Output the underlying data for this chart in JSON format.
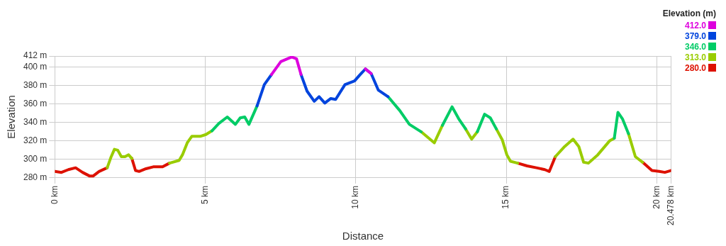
{
  "chart_data": {
    "type": "line",
    "xlabel": "Distance",
    "ylabel": "Elevation",
    "legend_title": "Elevation (m)",
    "legend": "top right",
    "x": [
      0,
      0.22,
      0.45,
      0.69,
      0.92,
      1.16,
      1.27,
      1.47,
      1.74,
      1.86,
      1.98,
      2.09,
      2.21,
      2.33,
      2.45,
      2.56,
      2.68,
      2.8,
      3.03,
      3.27,
      3.58,
      3.81,
      4.13,
      4.24,
      4.4,
      4.55,
      4.83,
      5.02,
      5.22,
      5.45,
      5.73,
      6.0,
      6.16,
      6.31,
      6.45,
      6.72,
      6.96,
      7.2,
      7.51,
      7.87,
      8.03,
      8.18,
      8.38,
      8.62,
      8.78,
      8.97,
      9.17,
      9.33,
      9.64,
      9.96,
      10.12,
      10.32,
      10.51,
      10.75,
      11.07,
      11.46,
      11.78,
      12.17,
      12.61,
      12.88,
      13.2,
      13.42,
      13.65,
      13.85,
      14.04,
      14.28,
      14.47,
      14.67,
      14.87,
      15.02,
      15.14,
      15.38,
      15.69,
      16.0,
      16.28,
      16.43,
      16.63,
      16.94,
      17.22,
      17.41,
      17.57,
      17.73,
      18.04,
      18.43,
      18.59,
      18.71,
      18.86,
      19.06,
      19.29,
      19.53,
      19.84,
      20.08,
      20.27,
      20.47
    ],
    "series": [
      {
        "name": "412.0",
        "color": "#dd00dd",
        "values": [
          null,
          null,
          null,
          null,
          null,
          null,
          null,
          null,
          null,
          null,
          null,
          null,
          null,
          null,
          null,
          null,
          null,
          null,
          null,
          null,
          null,
          null,
          null,
          null,
          null,
          null,
          null,
          null,
          null,
          null,
          null,
          null,
          null,
          null,
          null,
          null,
          null,
          392,
          406,
          411,
          409,
          392,
          null,
          null,
          null,
          null,
          null,
          null,
          null,
          null,
          null,
          398,
          393,
          null,
          null,
          null,
          null,
          null,
          null,
          null,
          null,
          null,
          null,
          null,
          null,
          null,
          null,
          null,
          null,
          null,
          null,
          null,
          null,
          null,
          null,
          null,
          null,
          null,
          null,
          null,
          null,
          null,
          null,
          null,
          null,
          null,
          null,
          null,
          null,
          null,
          null,
          null,
          null,
          null
        ]
      },
      {
        "name": "379.0",
        "color": "#0044dd",
        "values": [
          null,
          null,
          null,
          null,
          null,
          null,
          null,
          null,
          null,
          null,
          null,
          null,
          null,
          null,
          null,
          null,
          null,
          null,
          null,
          null,
          null,
          null,
          null,
          null,
          null,
          null,
          null,
          null,
          null,
          null,
          null,
          null,
          null,
          null,
          null,
          358,
          381,
          392,
          null,
          null,
          null,
          392,
          374,
          363,
          368,
          361,
          366,
          365,
          381,
          385,
          391,
          398,
          393,
          375,
          368,
          null,
          null,
          null,
          null,
          null,
          null,
          null,
          null,
          null,
          null,
          null,
          null,
          null,
          null,
          null,
          null,
          null,
          null,
          null,
          null,
          null,
          null,
          null,
          null,
          null,
          null,
          null,
          null,
          null,
          null,
          null,
          null,
          null,
          null,
          null,
          null,
          null,
          null,
          null
        ]
      },
      {
        "name": "346.0",
        "color": "#00cc66",
        "values": [
          null,
          null,
          null,
          null,
          null,
          null,
          null,
          null,
          null,
          null,
          null,
          null,
          null,
          null,
          null,
          null,
          null,
          null,
          null,
          null,
          null,
          null,
          null,
          null,
          null,
          null,
          null,
          null,
          331,
          339,
          346,
          338,
          345,
          346,
          338,
          358,
          null,
          null,
          null,
          null,
          null,
          null,
          null,
          null,
          null,
          null,
          null,
          null,
          null,
          null,
          null,
          null,
          null,
          null,
          368,
          353,
          338,
          330,
          null,
          337,
          357,
          344,
          333,
          null,
          330,
          349,
          345,
          333,
          null,
          null,
          null,
          null,
          null,
          null,
          null,
          null,
          null,
          null,
          null,
          null,
          null,
          null,
          null,
          null,
          323,
          351,
          344,
          328,
          null,
          null,
          null,
          null,
          null,
          null
        ]
      },
      {
        "name": "313.0",
        "color": "#99cc00",
        "values": [
          null,
          null,
          null,
          null,
          null,
          null,
          null,
          null,
          291,
          302,
          311,
          310,
          303,
          303,
          305,
          301,
          null,
          null,
          null,
          null,
          null,
          296,
          299,
          305,
          318,
          325,
          325,
          327,
          331,
          null,
          null,
          null,
          null,
          null,
          null,
          null,
          null,
          null,
          null,
          null,
          null,
          null,
          null,
          null,
          null,
          null,
          null,
          null,
          null,
          null,
          null,
          null,
          null,
          null,
          null,
          null,
          null,
          330,
          318,
          337,
          null,
          null,
          333,
          322,
          330,
          null,
          null,
          333,
          321,
          305,
          298,
          296,
          null,
          null,
          null,
          null,
          303,
          314,
          322,
          314,
          297,
          296,
          305,
          320,
          323,
          null,
          null,
          328,
          303,
          297,
          null,
          null,
          null,
          null
        ]
      },
      {
        "name": "280.0",
        "color": "#dd1100",
        "values": [
          287,
          286,
          289,
          291,
          286,
          282,
          282,
          287,
          291,
          null,
          null,
          null,
          null,
          null,
          null,
          301,
          288,
          287,
          290,
          292,
          292,
          296,
          null,
          null,
          null,
          null,
          null,
          null,
          null,
          null,
          null,
          null,
          null,
          null,
          null,
          null,
          null,
          null,
          null,
          null,
          null,
          null,
          null,
          null,
          null,
          null,
          null,
          null,
          null,
          null,
          null,
          null,
          null,
          null,
          null,
          null,
          null,
          null,
          null,
          null,
          null,
          null,
          null,
          null,
          null,
          null,
          null,
          null,
          null,
          null,
          null,
          296,
          293,
          291,
          289,
          287,
          303,
          null,
          null,
          null,
          null,
          null,
          null,
          null,
          null,
          null,
          null,
          null,
          null,
          297,
          288,
          287,
          286,
          288
        ]
      }
    ],
    "xlim": [
      0,
      20.478
    ],
    "ylim": [
      280,
      412
    ],
    "xticks": [
      {
        "value": 0,
        "label": "0 km"
      },
      {
        "value": 5,
        "label": "5 km"
      },
      {
        "value": 10,
        "label": "10 km"
      },
      {
        "value": 15,
        "label": "15 km"
      },
      {
        "value": 20,
        "label": "20 km"
      },
      {
        "value": 20.478,
        "label": "20.478 km"
      }
    ],
    "yticks": [
      {
        "value": 280,
        "label": "280 m"
      },
      {
        "value": 300,
        "label": "300 m"
      },
      {
        "value": 320,
        "label": "320 m"
      },
      {
        "value": 340,
        "label": "340 m"
      },
      {
        "value": 360,
        "label": "360 m"
      },
      {
        "value": 380,
        "label": "380 m"
      },
      {
        "value": 400,
        "label": "400 m"
      },
      {
        "value": 412,
        "label": "412 m"
      }
    ],
    "grid": true,
    "marker": "none",
    "line_style": "solid"
  }
}
